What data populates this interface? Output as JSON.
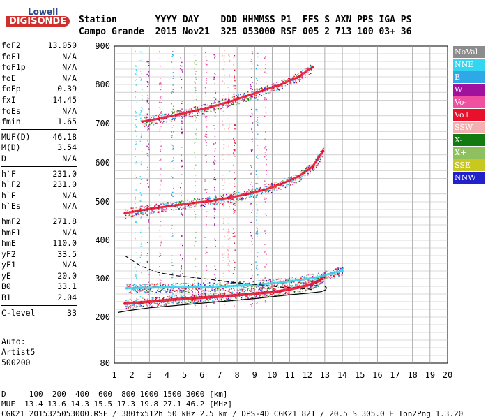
{
  "logo": {
    "line1": "Lowell",
    "line2": "DIGISONDE"
  },
  "header": {
    "row1": "Station       YYYY DAY    DDD HHMMSS P1  FFS S AXN PPS IGA PS",
    "row2": "Campo Grande  2015 Nov21  325 053000 RSF 005 2 713 100 03+ 36"
  },
  "params": {
    "g1": [
      {
        "name": "foF2",
        "value": "13.050"
      },
      {
        "name": "foF1",
        "value": "N/A"
      },
      {
        "name": "foF1p",
        "value": "N/A"
      },
      {
        "name": "foE",
        "value": "N/A"
      },
      {
        "name": "foEp",
        "value": "0.39"
      },
      {
        "name": "fxI",
        "value": "14.45"
      },
      {
        "name": "foEs",
        "value": "N/A"
      },
      {
        "name": "fmin",
        "value": "1.65"
      }
    ],
    "g2": [
      {
        "name": "MUF(D)",
        "value": "46.18"
      },
      {
        "name": "M(D)",
        "value": "3.54"
      },
      {
        "name": "D",
        "value": "N/A"
      }
    ],
    "g3": [
      {
        "name": "h`F",
        "value": "231.0"
      },
      {
        "name": "h`F2",
        "value": "231.0"
      },
      {
        "name": "h`E",
        "value": "N/A"
      },
      {
        "name": "h`Es",
        "value": "N/A"
      }
    ],
    "g4": [
      {
        "name": "hmF2",
        "value": "271.8"
      },
      {
        "name": "hmF1",
        "value": "N/A"
      },
      {
        "name": "hmE",
        "value": "110.0"
      },
      {
        "name": "yF2",
        "value": "33.5"
      },
      {
        "name": "yF1",
        "value": "N/A"
      },
      {
        "name": "yE",
        "value": "20.0"
      },
      {
        "name": "B0",
        "value": "33.1"
      },
      {
        "name": "B1",
        "value": "2.04"
      }
    ],
    "g5": [
      {
        "name": "C-level",
        "value": "33"
      }
    ]
  },
  "auto": {
    "l1": "Auto:",
    "l2": "Artist5",
    "l3": "500200"
  },
  "legend": [
    {
      "label": "NoVal",
      "color": "#8c8c8c"
    },
    {
      "label": "NNE",
      "color": "#33d6f0"
    },
    {
      "label": "E",
      "color": "#2fa8e8"
    },
    {
      "label": "W",
      "color": "#a0129e"
    },
    {
      "label": "Vo-",
      "color": "#f050a0"
    },
    {
      "label": "Vo+",
      "color": "#e8102a"
    },
    {
      "label": "SSW",
      "color": "#f4b0b0"
    },
    {
      "label": "X-",
      "color": "#117a11"
    },
    {
      "label": "X+",
      "color": "#8fc060"
    },
    {
      "label": "SSE",
      "color": "#c8c820"
    },
    {
      "label": "NNW",
      "color": "#2222cc"
    }
  ],
  "bottom": {
    "row1": "D     100  200  400  600  800 1000 1500 3000 [km]",
    "row2": "MUF  13.4 13.6 14.3 15.5 17.3 19.8 27.1 46.2 [MHz]",
    "row3": "CGK21_2015325053000.RSF / 380fx512h 50 kHz 2.5 km / DPS-4D CGK21 821 / 20.5 S 305.0 E Ion2Png 1.3.20"
  },
  "chart_data": {
    "type": "scatter",
    "title": "",
    "xlabel": "",
    "ylabel": "",
    "xlim": [
      1,
      20
    ],
    "ylim": [
      80,
      900
    ],
    "x_ticks": [
      1,
      2,
      3,
      4,
      5,
      6,
      7,
      8,
      9,
      10,
      11,
      12,
      13,
      14,
      15,
      16,
      17,
      18,
      19,
      20
    ],
    "y_ticks": [
      80,
      200,
      300,
      400,
      500,
      600,
      700,
      800,
      900
    ],
    "grid": true,
    "legend_position": "right",
    "series": [
      {
        "name": "Vo+",
        "color": "#e8102a",
        "x": [
          1.6,
          2.5,
          3.5,
          4.5,
          5.5,
          6.5,
          7.5,
          8.5,
          9.5,
          10.5,
          11.5,
          12.2,
          12.7,
          13.0
        ],
        "y": [
          235,
          238,
          242,
          246,
          249,
          252,
          255,
          259,
          263,
          268,
          277,
          285,
          295,
          310
        ]
      },
      {
        "name": "Vo+ (2F)",
        "color": "#e8102a",
        "x": [
          1.6,
          2.5,
          3.5,
          4.5,
          5.5,
          6.5,
          7.5,
          8.5,
          9.5,
          10.5,
          11.5,
          12.3,
          12.9
        ],
        "y": [
          470,
          478,
          485,
          491,
          497,
          502,
          510,
          519,
          530,
          545,
          565,
          590,
          630
        ]
      },
      {
        "name": "Vo+ (3F)",
        "color": "#e8102a",
        "x": [
          2.6,
          3.5,
          4.5,
          5.5,
          6.5,
          7.5,
          8.5,
          9.5,
          10.5,
          11.5,
          12.3
        ],
        "y": [
          705,
          712,
          722,
          732,
          742,
          755,
          770,
          785,
          800,
          820,
          845
        ]
      },
      {
        "name": "NNE",
        "color": "#33d6f0",
        "x": [
          1.7,
          2.5,
          3.5,
          4.5,
          5.5,
          6.5,
          7.5,
          8.5,
          9.5,
          10.5,
          11.5,
          12.5,
          13.5,
          14.0
        ],
        "y": [
          275,
          276,
          277,
          278,
          278,
          279,
          280,
          283,
          286,
          290,
          296,
          303,
          315,
          320
        ]
      }
    ],
    "profile": {
      "x": [
        1.2,
        2,
        3,
        4,
        5,
        6,
        7,
        8,
        9,
        10,
        11,
        12,
        12.8,
        13.05,
        13.1,
        13.0
      ],
      "y": [
        212,
        218,
        224,
        228,
        232,
        236,
        240,
        244,
        248,
        253,
        258,
        262,
        266,
        271,
        276,
        280
      ]
    },
    "muf_curve": {
      "x": [
        1.6,
        2.5,
        3.5,
        4.5,
        5.5,
        6.5,
        7.5,
        8.5,
        9.5,
        10.5,
        11.5,
        12.3
      ],
      "y": [
        360,
        333,
        316,
        308,
        303,
        298,
        292,
        287,
        283,
        278,
        275,
        272
      ]
    }
  }
}
